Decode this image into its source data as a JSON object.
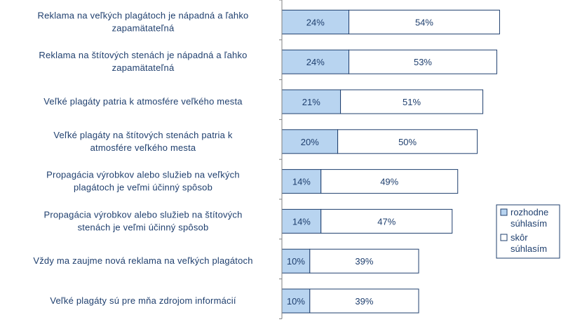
{
  "chart_data": {
    "type": "bar",
    "orientation": "horizontal",
    "stacked": true,
    "categories": [
      [
        "Reklama na veľkých plagátoch je nápadná a ľahko",
        "zapamätateľná"
      ],
      [
        "Reklama na štítových stenách je nápadná a ľahko",
        "zapamätateľná"
      ],
      [
        "Veľké plagáty patria k atmosfére veľkého mesta"
      ],
      [
        "Veľké plagáty na štítových stenách patria k",
        "atmosfére veľkého mesta"
      ],
      [
        "Propagácia výrobkov alebo služieb na veľkých",
        "plagátoch je veľmi účinný spôsob"
      ],
      [
        "Propagácia výrobkov alebo služieb na štítových",
        "stenách je veľmi účinný spôsob"
      ],
      [
        "Vždy ma zaujme nová reklama na veľkých plagátoch"
      ],
      [
        "Veľké plagáty sú pre mňa zdrojom informácií"
      ]
    ],
    "series": [
      {
        "name": "rozhodne súhlasím",
        "legend_lines": [
          "rozhodne",
          "súhlasím"
        ],
        "values": [
          24,
          24,
          21,
          20,
          14,
          14,
          10,
          10
        ],
        "labels": [
          "24%",
          "24%",
          "21%",
          "20%",
          "14%",
          "14%",
          "10%",
          "10%"
        ],
        "color": "#b8d4f0"
      },
      {
        "name": "skôr súhlasím",
        "legend_lines": [
          "skôr",
          "súhlasím"
        ],
        "values": [
          54,
          53,
          51,
          50,
          49,
          47,
          39,
          39
        ],
        "labels": [
          "54%",
          "53%",
          "51%",
          "50%",
          "49%",
          "47%",
          "39%",
          "39%"
        ],
        "color": "#ffffff"
      }
    ],
    "title": "",
    "xlabel": "",
    "ylabel": "",
    "xlim": [
      0,
      100
    ],
    "grid": false,
    "legend": "right",
    "bar_edge_color": "#1f3f6e",
    "text_color": "#1f3f6e"
  }
}
